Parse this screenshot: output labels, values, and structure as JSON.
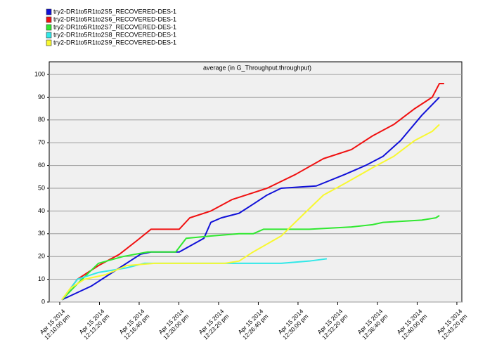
{
  "chart_data": {
    "type": "line",
    "title": "average (in G_Throughput.throughput)",
    "legend": "top-left",
    "grid": true,
    "xlim": [
      "2014-04-15T12:09:07",
      "2014-04-15T12:43:45"
    ],
    "xticks": [
      {
        "value": "2014-04-15T12:10:00",
        "label": "Apr 15 2014\n12:10:00 pm"
      },
      {
        "value": "2014-04-15T12:13:20",
        "label": "Apr 15 2014\n12:13:20 pm"
      },
      {
        "value": "2014-04-15T12:16:40",
        "label": "Apr 15 2014\n12:16:40 pm"
      },
      {
        "value": "2014-04-15T12:20:00",
        "label": "Apr 15 2014\n12:20:00 pm"
      },
      {
        "value": "2014-04-15T12:23:20",
        "label": "Apr 15 2014\n12:23:20 pm"
      },
      {
        "value": "2014-04-15T12:26:40",
        "label": "Apr 15 2014\n12:26:40 pm"
      },
      {
        "value": "2014-04-15T12:30:00",
        "label": "Apr 15 2014\n12:30:00 pm"
      },
      {
        "value": "2014-04-15T12:33:20",
        "label": "Apr 15 2014\n12:33:20 pm"
      },
      {
        "value": "2014-04-15T12:36:40",
        "label": "Apr 15 2014\n12:36:40 pm"
      },
      {
        "value": "2014-04-15T12:40:00",
        "label": "Apr 15 2014\n12:40:00 pm"
      },
      {
        "value": "2014-04-15T12:43:20",
        "label": "Apr 15 2014\n12:43:20 pm"
      }
    ],
    "ylim": [
      0,
      100
    ],
    "yticks": [
      0,
      10,
      20,
      30,
      40,
      50,
      60,
      70,
      80,
      90,
      100
    ],
    "series": [
      {
        "name": "try2-DR1to5R1to2S5_RECOVERED-DES-1",
        "color": "#1010d8",
        "x": [
          "2014-04-15T12:10:11",
          "2014-04-15T12:12:39",
          "2014-04-15T12:14:43",
          "2014-04-15T12:16:47",
          "2014-04-15T12:17:40",
          "2014-04-15T12:20:02",
          "2014-04-15T12:22:06",
          "2014-04-15T12:22:41",
          "2014-04-15T12:23:34",
          "2014-04-15T12:25:03",
          "2014-04-15T12:26:14",
          "2014-04-15T12:27:24",
          "2014-04-15T12:28:35",
          "2014-04-15T12:31:32",
          "2014-04-15T12:33:54",
          "2014-04-15T12:35:40",
          "2014-04-15T12:37:08",
          "2014-04-15T12:38:37",
          "2014-04-15T12:40:23",
          "2014-04-15T12:41:52"
        ],
        "values": [
          1,
          7,
          14,
          21,
          22,
          22,
          28,
          35,
          37,
          39,
          43,
          47,
          50,
          51,
          56,
          60,
          64,
          71,
          82,
          90
        ]
      },
      {
        "name": "try2-DR1to5R1to2S6_RECOVERED-DES-1",
        "color": "#f01010",
        "x": [
          "2014-04-15T12:10:11",
          "2014-04-15T12:11:29",
          "2014-04-15T12:13:15",
          "2014-04-15T12:15:01",
          "2014-04-15T12:16:29",
          "2014-04-15T12:17:40",
          "2014-04-15T12:20:02",
          "2014-04-15T12:20:55",
          "2014-04-15T12:22:41",
          "2014-04-15T12:24:27",
          "2014-04-15T12:26:14",
          "2014-04-15T12:27:24",
          "2014-04-15T12:29:46",
          "2014-04-15T12:32:08",
          "2014-04-15T12:34:29",
          "2014-04-15T12:36:15",
          "2014-04-15T12:38:02",
          "2014-04-15T12:39:48",
          "2014-04-15T12:41:16",
          "2014-04-15T12:41:52",
          "2014-04-15T12:42:16"
        ],
        "values": [
          1,
          10,
          16,
          21,
          27,
          32,
          32,
          37,
          40,
          45,
          48,
          50,
          56,
          63,
          67,
          73,
          78,
          85,
          90,
          96,
          96
        ]
      },
      {
        "name": "try2-DR1to5R1to2S7_RECOVERED-DES-1",
        "color": "#30e830",
        "x": [
          "2014-04-15T12:10:11",
          "2014-04-15T12:11:29",
          "2014-04-15T12:13:15",
          "2014-04-15T12:15:19",
          "2014-04-15T12:17:23",
          "2014-04-15T12:19:44",
          "2014-04-15T12:20:37",
          "2014-04-15T12:22:41",
          "2014-04-15T12:25:03",
          "2014-04-15T12:26:14",
          "2014-04-15T12:27:07",
          "2014-04-15T12:30:57",
          "2014-04-15T12:34:29",
          "2014-04-15T12:36:15",
          "2014-04-15T12:37:08",
          "2014-04-15T12:40:23",
          "2014-04-15T12:41:34",
          "2014-04-15T12:41:52"
        ],
        "values": [
          1,
          8,
          17,
          20,
          22,
          22,
          28,
          29,
          30,
          30,
          32,
          32,
          33,
          34,
          35,
          36,
          37,
          38
        ]
      },
      {
        "name": "try2-DR1to5R1to2S8_RECOVERED-DES-1",
        "color": "#30e8e8",
        "x": [
          "2014-04-15T12:10:11",
          "2014-04-15T12:11:29",
          "2014-04-15T12:13:15",
          "2014-04-15T12:15:36",
          "2014-04-15T12:17:05",
          "2014-04-15T12:22:41",
          "2014-04-15T12:28:35",
          "2014-04-15T12:30:57",
          "2014-04-15T12:32:25"
        ],
        "values": [
          1,
          10,
          13,
          15,
          17,
          17,
          17,
          18,
          19
        ]
      },
      {
        "name": "try2-DR1to5R1to2S9_RECOVERED-DES-1",
        "color": "#f8f830",
        "x": [
          "2014-04-15T12:10:11",
          "2014-04-15T12:10:53",
          "2014-04-15T12:12:04",
          "2014-04-15T12:13:50",
          "2014-04-15T12:15:36",
          "2014-04-15T12:17:58",
          "2014-04-15T12:23:52",
          "2014-04-15T12:25:03",
          "2014-04-15T12:26:14",
          "2014-04-15T12:28:35",
          "2014-04-15T12:30:21",
          "2014-04-15T12:32:08",
          "2014-04-15T12:33:54",
          "2014-04-15T12:36:15",
          "2014-04-15T12:38:02",
          "2014-04-15T12:39:48",
          "2014-04-15T12:41:16",
          "2014-04-15T12:41:52"
        ],
        "values": [
          1,
          6,
          10,
          12,
          16,
          17,
          17,
          18,
          22,
          29,
          38,
          47,
          52,
          59,
          64,
          71,
          75,
          78
        ]
      }
    ]
  }
}
